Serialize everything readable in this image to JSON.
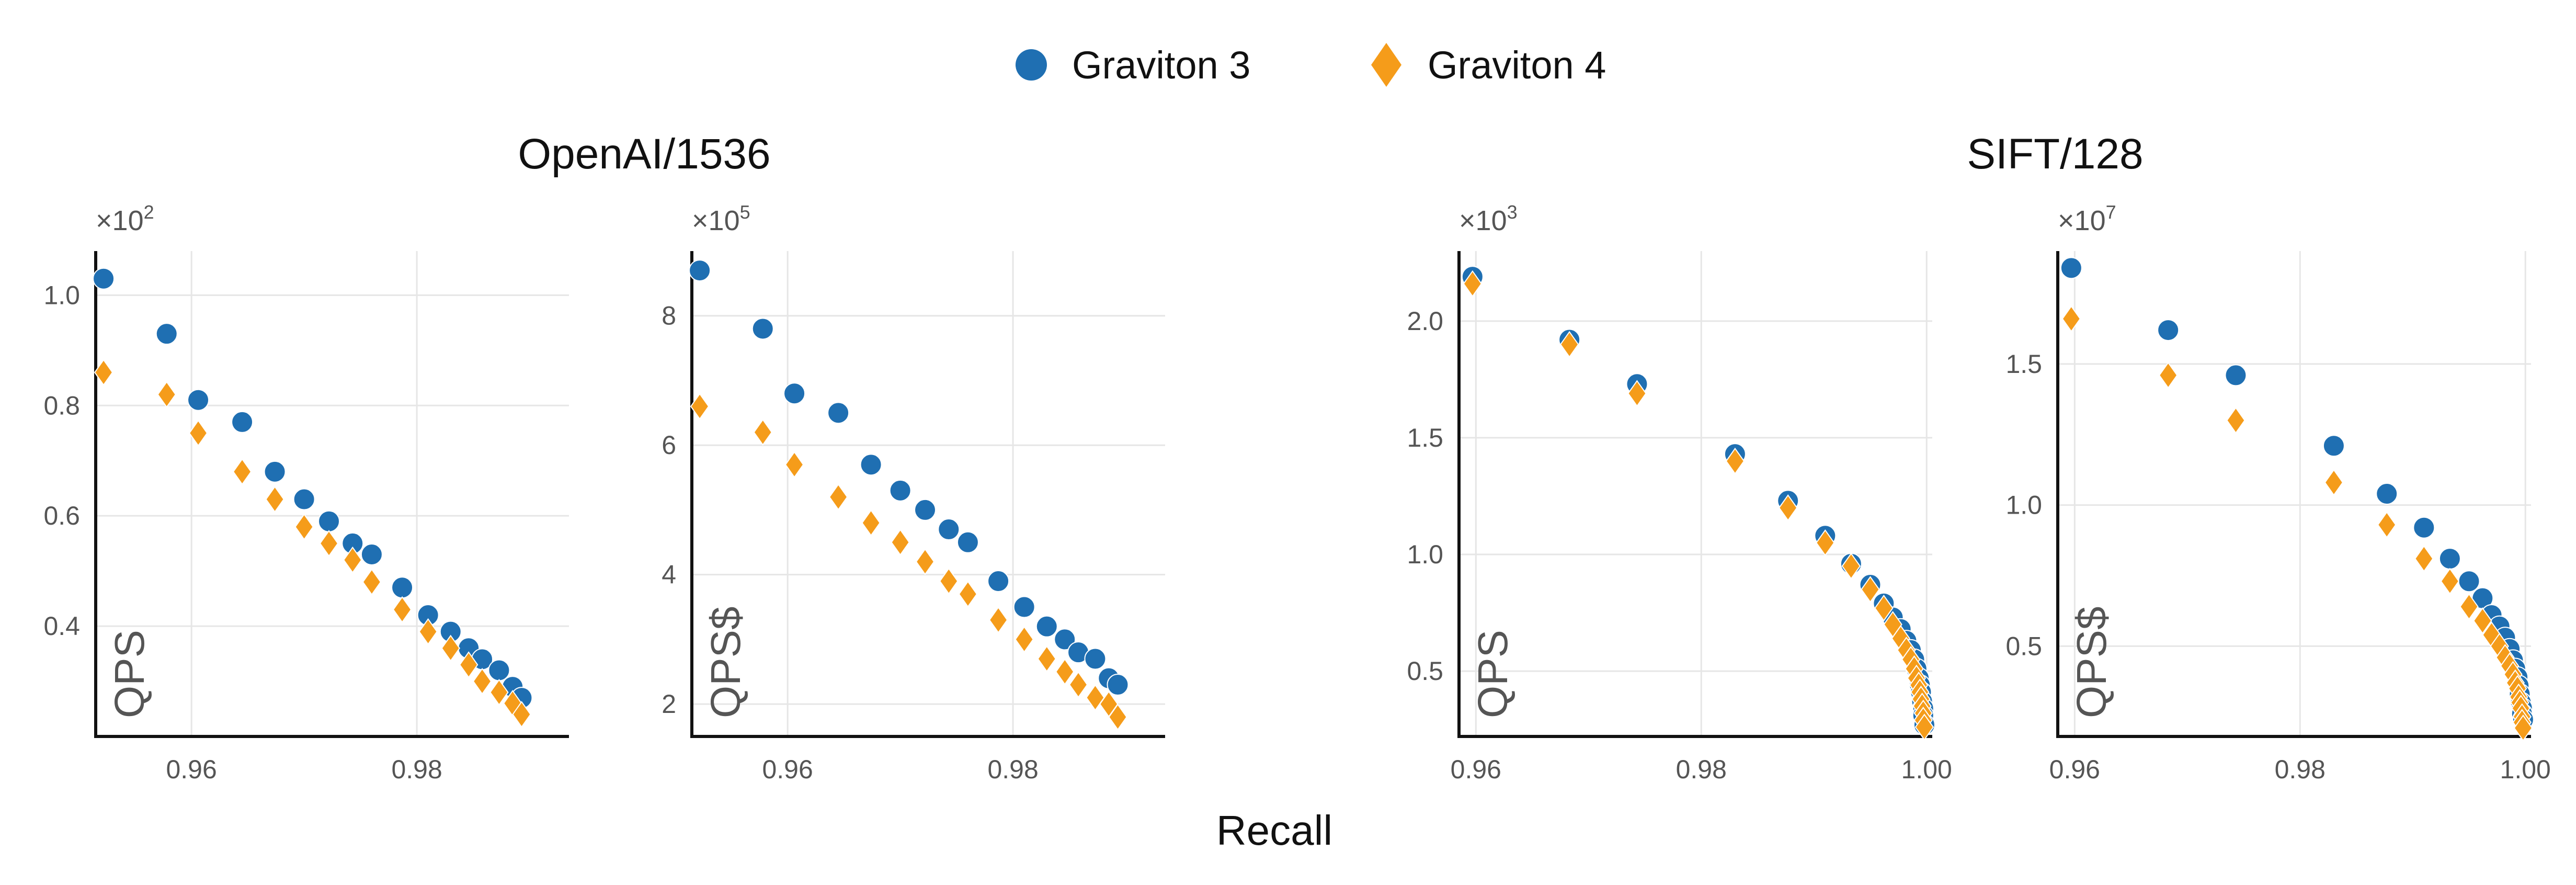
{
  "legend": {
    "items": [
      {
        "label": "Graviton 3",
        "color": "#1f6fb2",
        "marker": "circle"
      },
      {
        "label": "Graviton 4",
        "color": "#f59c1a",
        "marker": "diamond"
      }
    ],
    "placement": "top-center"
  },
  "group_titles": [
    "OpenAI/1536",
    "SIFT/128"
  ],
  "xlabel": "Recall",
  "chart_data": [
    {
      "type": "scatter",
      "group": "OpenAI/1536",
      "ylabel": "QPS",
      "multiplier_base": "×10",
      "multiplier_exp": "2",
      "xlim": [
        0.9515,
        0.9935
      ],
      "ylim": [
        0.2,
        1.08
      ],
      "xticks": [
        0.96,
        0.98
      ],
      "xtick_labels": [
        "0.96",
        "0.98"
      ],
      "yticks": [
        0.4,
        0.6,
        0.8,
        1.0
      ],
      "ytick_labels": [
        "0.4",
        "0.6",
        "0.8",
        "1.0"
      ],
      "grid": true,
      "series": [
        {
          "name": "Graviton 3",
          "x": [
            0.9522,
            0.9578,
            0.9606,
            0.9645,
            0.9674,
            0.97,
            0.9722,
            0.9743,
            0.976,
            0.9787,
            0.981,
            0.983,
            0.9846,
            0.9858,
            0.9873,
            0.9885,
            0.9893
          ],
          "y": [
            1.03,
            0.93,
            0.81,
            0.77,
            0.68,
            0.63,
            0.59,
            0.55,
            0.53,
            0.47,
            0.42,
            0.39,
            0.36,
            0.34,
            0.32,
            0.29,
            0.27
          ]
        },
        {
          "name": "Graviton 4",
          "x": [
            0.9522,
            0.9578,
            0.9606,
            0.9645,
            0.9674,
            0.97,
            0.9722,
            0.9743,
            0.976,
            0.9787,
            0.981,
            0.983,
            0.9846,
            0.9858,
            0.9873,
            0.9885,
            0.9893
          ],
          "y": [
            0.86,
            0.82,
            0.75,
            0.68,
            0.63,
            0.58,
            0.55,
            0.52,
            0.48,
            0.43,
            0.39,
            0.36,
            0.33,
            0.3,
            0.28,
            0.26,
            0.24
          ]
        }
      ]
    },
    {
      "type": "scatter",
      "group": "OpenAI/1536",
      "ylabel": "QPS$",
      "multiplier_base": "×10",
      "multiplier_exp": "5",
      "xlim": [
        0.9515,
        0.9935
      ],
      "ylim": [
        1.5,
        9.0
      ],
      "xticks": [
        0.96,
        0.98
      ],
      "xtick_labels": [
        "0.96",
        "0.98"
      ],
      "yticks": [
        2,
        4,
        6,
        8
      ],
      "ytick_labels": [
        "2",
        "4",
        "6",
        "8"
      ],
      "grid": true,
      "series": [
        {
          "name": "Graviton 3",
          "x": [
            0.9522,
            0.9578,
            0.9606,
            0.9645,
            0.9674,
            0.97,
            0.9722,
            0.9743,
            0.976,
            0.9787,
            0.981,
            0.983,
            0.9846,
            0.9858,
            0.9873,
            0.9885,
            0.9893
          ],
          "y": [
            8.7,
            7.8,
            6.8,
            6.5,
            5.7,
            5.3,
            5.0,
            4.7,
            4.5,
            3.9,
            3.5,
            3.2,
            3.0,
            2.8,
            2.7,
            2.4,
            2.3
          ]
        },
        {
          "name": "Graviton 4",
          "x": [
            0.9522,
            0.9578,
            0.9606,
            0.9645,
            0.9674,
            0.97,
            0.9722,
            0.9743,
            0.976,
            0.9787,
            0.981,
            0.983,
            0.9846,
            0.9858,
            0.9873,
            0.9885,
            0.9893
          ],
          "y": [
            6.6,
            6.2,
            5.7,
            5.2,
            4.8,
            4.5,
            4.2,
            3.9,
            3.7,
            3.3,
            3.0,
            2.7,
            2.5,
            2.3,
            2.1,
            2.0,
            1.8
          ]
        }
      ]
    },
    {
      "type": "scatter",
      "group": "SIFT/128",
      "ylabel": "QPS",
      "multiplier_base": "×10",
      "multiplier_exp": "3",
      "xlim": [
        0.9585,
        1.0005
      ],
      "ylim": [
        0.22,
        2.3
      ],
      "xticks": [
        0.96,
        0.98,
        1.0
      ],
      "xtick_labels": [
        "0.96",
        "0.98",
        "1.00"
      ],
      "yticks": [
        0.5,
        1.0,
        1.5,
        2.0
      ],
      "ytick_labels": [
        "0.5",
        "1.0",
        "1.5",
        "2.0"
      ],
      "grid": true,
      "series": [
        {
          "name": "Graviton 3",
          "x": [
            0.9597,
            0.9683,
            0.9743,
            0.983,
            0.9877,
            0.991,
            0.9933,
            0.995,
            0.9962,
            0.997,
            0.9977,
            0.9982,
            0.9986,
            0.9989,
            0.9991,
            0.9993,
            0.9994,
            0.9995,
            0.9996,
            0.9997,
            0.9997,
            0.9998
          ],
          "y": [
            2.19,
            1.92,
            1.73,
            1.43,
            1.23,
            1.08,
            0.96,
            0.87,
            0.79,
            0.73,
            0.68,
            0.63,
            0.59,
            0.55,
            0.51,
            0.47,
            0.44,
            0.41,
            0.37,
            0.34,
            0.31,
            0.27
          ]
        },
        {
          "name": "Graviton 4",
          "x": [
            0.9597,
            0.9683,
            0.9743,
            0.983,
            0.9877,
            0.991,
            0.9933,
            0.995,
            0.9962,
            0.997,
            0.9977,
            0.9982,
            0.9986,
            0.9989,
            0.9991,
            0.9993,
            0.9994,
            0.9995,
            0.9996,
            0.9997,
            0.9997,
            0.9998
          ],
          "y": [
            2.16,
            1.9,
            1.69,
            1.4,
            1.2,
            1.05,
            0.95,
            0.85,
            0.77,
            0.7,
            0.64,
            0.59,
            0.55,
            0.51,
            0.47,
            0.44,
            0.41,
            0.38,
            0.35,
            0.32,
            0.29,
            0.26
          ]
        }
      ]
    },
    {
      "type": "scatter",
      "group": "SIFT/128",
      "ylabel": "QPS$",
      "multiplier_base": "×10",
      "multiplier_exp": "7",
      "xlim": [
        0.9585,
        1.0005
      ],
      "ylim": [
        0.18,
        1.9
      ],
      "xticks": [
        0.96,
        0.98,
        1.0
      ],
      "xtick_labels": [
        "0.96",
        "0.98",
        "1.00"
      ],
      "yticks": [
        0.5,
        1.0,
        1.5
      ],
      "ytick_labels": [
        "0.5",
        "1.0",
        "1.5"
      ],
      "grid": true,
      "series": [
        {
          "name": "Graviton 3",
          "x": [
            0.9597,
            0.9683,
            0.9743,
            0.983,
            0.9877,
            0.991,
            0.9933,
            0.995,
            0.9962,
            0.997,
            0.9977,
            0.9982,
            0.9986,
            0.9989,
            0.9991,
            0.9993,
            0.9994,
            0.9995,
            0.9996,
            0.9997,
            0.9997,
            0.9998
          ],
          "y": [
            1.84,
            1.62,
            1.46,
            1.21,
            1.04,
            0.92,
            0.81,
            0.73,
            0.67,
            0.61,
            0.57,
            0.53,
            0.49,
            0.45,
            0.42,
            0.39,
            0.36,
            0.33,
            0.3,
            0.28,
            0.26,
            0.24
          ]
        },
        {
          "name": "Graviton 4",
          "x": [
            0.9597,
            0.9683,
            0.9743,
            0.983,
            0.9877,
            0.991,
            0.9933,
            0.995,
            0.9962,
            0.997,
            0.9977,
            0.9982,
            0.9986,
            0.9989,
            0.9991,
            0.9993,
            0.9994,
            0.9995,
            0.9996,
            0.9997,
            0.9997,
            0.9998
          ],
          "y": [
            1.66,
            1.46,
            1.3,
            1.08,
            0.93,
            0.81,
            0.73,
            0.64,
            0.59,
            0.54,
            0.5,
            0.46,
            0.43,
            0.4,
            0.37,
            0.35,
            0.32,
            0.3,
            0.28,
            0.25,
            0.23,
            0.21
          ]
        }
      ]
    }
  ]
}
